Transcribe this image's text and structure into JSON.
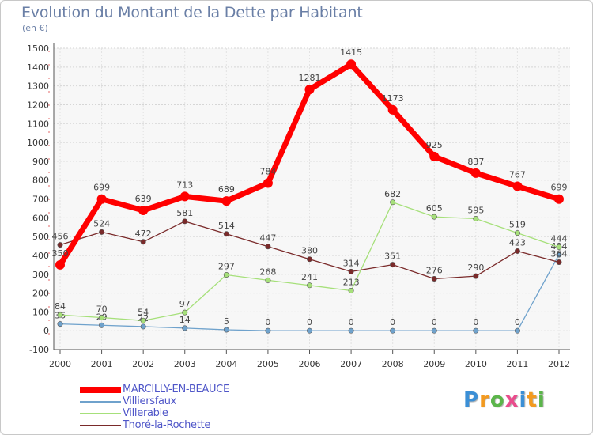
{
  "chart_data": {
    "type": "line",
    "title": "Evolution du Montant de la Dette par Habitant",
    "subtitle": "(en €)",
    "x": [
      "2000",
      "2001",
      "2002",
      "2003",
      "2004",
      "2005",
      "2006",
      "2007",
      "2008",
      "2009",
      "2010",
      "2011",
      "2012"
    ],
    "ylim": [
      -100,
      1500
    ],
    "yticks": [
      -100,
      0,
      100,
      200,
      300,
      400,
      500,
      600,
      700,
      800,
      900,
      1000,
      1100,
      1200,
      1300,
      1400,
      1500
    ],
    "grid": true,
    "legend_placement": "bottom-left",
    "series": [
      {
        "name": "MARCILLY-EN-BEAUCE",
        "color": "#ff0000",
        "values": [
          350,
          699,
          639,
          713,
          689,
          784,
          1281,
          1415,
          1173,
          925,
          837,
          767,
          699
        ],
        "labels": [
          "350",
          "699",
          "639",
          "713",
          "689",
          "784",
          "1281",
          "1415",
          "1173",
          "925",
          "837",
          "767",
          "699"
        ]
      },
      {
        "name": "Villiersfaux",
        "color": "#6fa2cc",
        "values": [
          36,
          29,
          22,
          14,
          5,
          0,
          0,
          0,
          0,
          0,
          0,
          0,
          404
        ],
        "labels": [
          "36",
          "29",
          "22",
          "14",
          "5",
          "0",
          "0",
          "0",
          "0",
          "0",
          "0",
          "0",
          "404"
        ]
      },
      {
        "name": "Villerable",
        "color": "#a6e07a",
        "values": [
          84,
          70,
          54,
          97,
          297,
          268,
          241,
          213,
          682,
          605,
          595,
          519,
          444
        ],
        "labels": [
          "84",
          "70",
          "54",
          "97",
          "297",
          "268",
          "241",
          "213",
          "682",
          "605",
          "595",
          "519",
          "444"
        ]
      },
      {
        "name": "Thoré-la-Rochette",
        "color": "#7a2a2a",
        "values": [
          456,
          524,
          472,
          581,
          514,
          447,
          380,
          314,
          351,
          276,
          290,
          423,
          364
        ],
        "labels": [
          "456",
          "524",
          "472",
          "581",
          "514",
          "447",
          "380",
          "314",
          "351",
          "276",
          "290",
          "423",
          "364"
        ]
      }
    ]
  },
  "logo": {
    "letters": [
      "P",
      "r",
      "o",
      "x",
      "i",
      "t",
      "i"
    ],
    "colors": [
      "#3b8fd6",
      "#f39a1f",
      "#5bb54a",
      "#e94c8c",
      "#3b8fd6",
      "#f39a1f",
      "#5bb54a"
    ]
  }
}
